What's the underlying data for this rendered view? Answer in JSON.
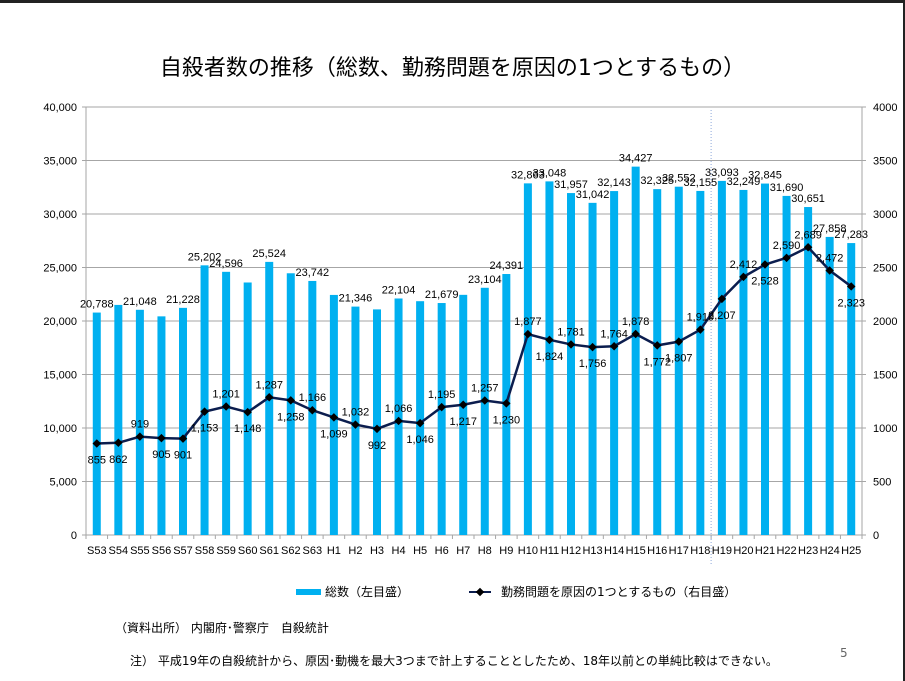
{
  "page": {
    "title": "自殺者数の推移（総数、勤務問題を原因の1つとするもの）",
    "source": "（資料出所） 内閣府･警察庁　自殺統計",
    "note": "注） 平成19年の自殺統計から、原因･動機を最大3つまで計上することとしたため、18年以前との単純比較はできない。",
    "page_number": "5"
  },
  "chart_data": {
    "type": "bar",
    "title": "自殺者数の推移（総数、勤務問題を原因の1つとするもの）",
    "xlabel": "",
    "ylabel": "",
    "y2label": "",
    "ylim": [
      0,
      40000
    ],
    "y2lim": [
      0,
      4000
    ],
    "yticks": [
      "0",
      "5,000",
      "10,000",
      "15,000",
      "20,000",
      "25,000",
      "30,000",
      "35,000",
      "40,000"
    ],
    "y2ticks": [
      "0",
      "500",
      "1000",
      "1500",
      "2000",
      "2500",
      "3000",
      "3500",
      "4000"
    ],
    "grid": true,
    "legend_position": "bottom",
    "divider_after_category": "H18",
    "categories": [
      "S53",
      "S54",
      "S55",
      "S56",
      "S57",
      "S58",
      "S59",
      "S60",
      "S61",
      "S62",
      "S63",
      "H1",
      "H2",
      "H3",
      "H4",
      "H5",
      "H6",
      "H7",
      "H8",
      "H9",
      "H10",
      "H11",
      "H12",
      "H13",
      "H14",
      "H15",
      "H16",
      "H17",
      "H18",
      "H19",
      "H20",
      "H21",
      "H22",
      "H23",
      "H24",
      "H25"
    ],
    "series": [
      {
        "name": "総数（左目盛）",
        "type": "bar",
        "axis": "left",
        "color": "#00B0F0",
        "values": [
          20788,
          21503,
          21048,
          20434,
          21228,
          25202,
          24596,
          23599,
          25524,
          24460,
          23742,
          22436,
          21346,
          21084,
          22104,
          21851,
          21679,
          22445,
          23104,
          24391,
          32863,
          33048,
          31957,
          31042,
          32143,
          34427,
          32325,
          32552,
          32155,
          33093,
          32249,
          32845,
          31690,
          30651,
          27858,
          27283
        ],
        "labels": [
          "20,788",
          "",
          "21,048",
          "",
          "21,228",
          "25,202",
          "24,596",
          "",
          "25,524",
          "",
          "23,742",
          "",
          "21,346",
          "",
          "22,104",
          "",
          "21,679",
          "",
          "23,104",
          "24,391",
          "32,863",
          "33,048",
          "31,957",
          "31,042",
          "32,143",
          "34,427",
          "32,325",
          "32,552",
          "32,155",
          "33,093",
          "32,249",
          "32,845",
          "31,690",
          "30,651",
          "27,858",
          "27,283"
        ]
      },
      {
        "name": "勤務問題を原因の1つとするもの（右目盛）",
        "type": "line",
        "axis": "right",
        "color": "#0B1D4E",
        "values": [
          855,
          862,
          919,
          905,
          901,
          1153,
          1201,
          1148,
          1287,
          1258,
          1166,
          1099,
          1032,
          992,
          1066,
          1046,
          1195,
          1217,
          1257,
          1230,
          1877,
          1824,
          1781,
          1756,
          1764,
          1878,
          1772,
          1807,
          1919,
          2207,
          2412,
          2528,
          2590,
          2689,
          2472,
          2323
        ],
        "labels": [
          "855",
          "862",
          "919",
          "905",
          "901",
          "1,153",
          "1,201",
          "1,148",
          "1,287",
          "1,258",
          "1,166",
          "1,099",
          "1,032",
          "992",
          "1,066",
          "1,046",
          "1,195",
          "1,217",
          "1,257",
          "1,230",
          "1,877",
          "1,824",
          "1,781",
          "1,756",
          "1,764",
          "1,878",
          "1,772",
          "1,807",
          "1,919",
          "2,207",
          "2,412",
          "2,528",
          "2,590",
          "2,689",
          "2,472",
          "2,323"
        ]
      }
    ]
  },
  "legend": {
    "bar_label": "総数（左目盛）",
    "line_label": "勤務問題を原因の1つとするもの（右目盛）"
  }
}
